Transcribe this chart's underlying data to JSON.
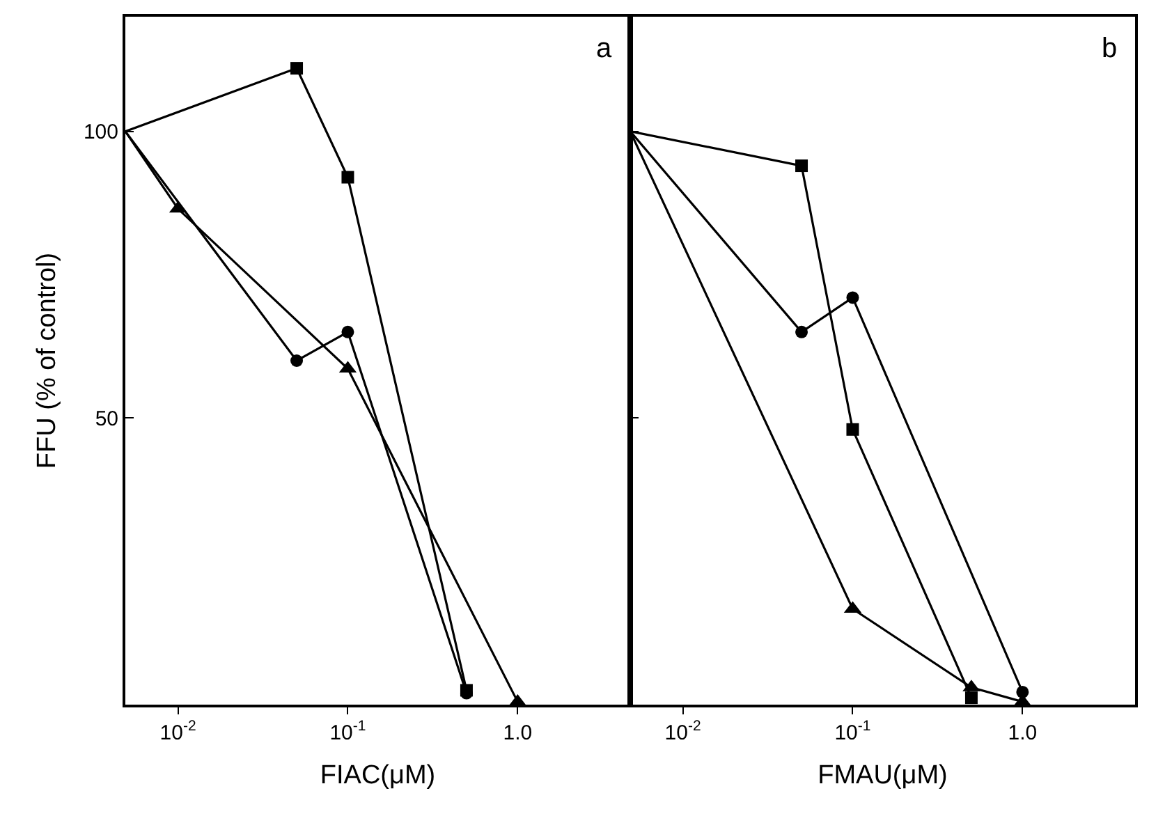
{
  "chart_data": [
    {
      "type": "line",
      "xlabel": "FIAC(μM)",
      "ylabel": "FFU (% of control)",
      "annotations": [
        "a"
      ],
      "log": "x",
      "line_style": "solid",
      "xlim": [
        0.0049,
        4.6
      ],
      "xticks": [
        {
          "value": 0.01,
          "label": "10$^{-2}$"
        },
        {
          "value": 0.1,
          "label": "10$^{-1}$"
        },
        {
          "value": 1.0,
          "label": "1.0"
        }
      ],
      "ylim": [
        0,
        120
      ],
      "yticks": [
        50,
        100
      ],
      "series": [
        {
          "color": "#000000",
          "marker": "circle",
          "x": [
            0.0049,
            0.05,
            0.1,
            0.5
          ],
          "values": [
            100,
            60,
            65,
            2
          ]
        },
        {
          "color": "#000000",
          "marker": "square",
          "x": [
            0.0049,
            0.05,
            0.1,
            0.5
          ],
          "values": [
            100,
            111,
            92,
            2.5
          ]
        },
        {
          "color": "#000000",
          "marker": "triangle",
          "x": [
            0.0049,
            0.01,
            0.1,
            1.0
          ],
          "values": [
            100,
            86.5,
            58.6,
            0.5
          ]
        }
      ]
    },
    {
      "type": "line",
      "xlabel": "FMAU(μM)",
      "annotations": [
        "b"
      ],
      "log": "x",
      "line_style": "solid",
      "tick_labels": "x",
      "xlim": [
        0.0049,
        4.6
      ],
      "xticks": [
        {
          "value": 0.01,
          "label": "10$^{-2}$"
        },
        {
          "value": 0.1,
          "label": "10$^{-1}$"
        },
        {
          "value": 1.0,
          "label": "1.0"
        }
      ],
      "ylim": [
        0,
        120
      ],
      "yticks": [
        50,
        100
      ],
      "series": [
        {
          "color": "#000000",
          "marker": "square",
          "x": [
            0.0049,
            0.05,
            0.1,
            0.5
          ],
          "values": [
            100,
            94,
            48,
            1.2
          ]
        },
        {
          "color": "#000000",
          "marker": "circle",
          "x": [
            0.0049,
            0.05,
            0.1,
            1.0
          ],
          "values": [
            100,
            65,
            71,
            2.2
          ]
        },
        {
          "color": "#000000",
          "marker": "triangle",
          "x": [
            0.0049,
            0.1,
            0.5,
            1.0
          ],
          "values": [
            100,
            16.7,
            3,
            0.5
          ]
        }
      ]
    }
  ]
}
